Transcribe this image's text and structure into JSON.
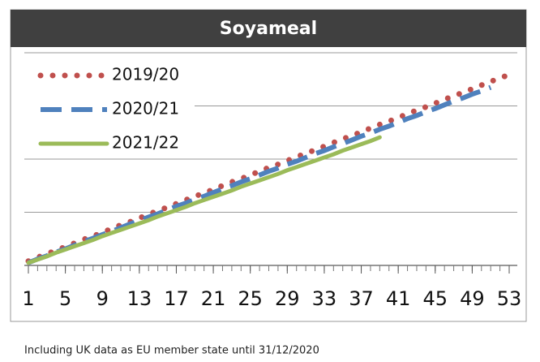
{
  "chart_data": {
    "type": "line",
    "title": "Soyameal",
    "note": "Including UK data as EU member state until 31/12/2020",
    "x": [
      1,
      2,
      3,
      4,
      5,
      6,
      7,
      8,
      9,
      10,
      11,
      12,
      13,
      14,
      15,
      16,
      17,
      18,
      19,
      20,
      21,
      22,
      23,
      24,
      25,
      26,
      27,
      28,
      29,
      30,
      31,
      32,
      33,
      34,
      35,
      36,
      37,
      38,
      39,
      40,
      41,
      42,
      43,
      44,
      45,
      46,
      47,
      48,
      49,
      50,
      51,
      52,
      53
    ],
    "xlim": [
      1,
      53
    ],
    "xticks": [
      1,
      5,
      9,
      13,
      17,
      21,
      25,
      29,
      33,
      37,
      41,
      45,
      49,
      53
    ],
    "ylim": [
      0,
      4
    ],
    "yticks": [
      0,
      1,
      2,
      3,
      4
    ],
    "grid": true,
    "legend": "upper-left",
    "series": [
      {
        "name": "2019/20",
        "color": "#c0504d",
        "style": "dotted",
        "values": [
          0.08,
          0.15,
          0.22,
          0.28,
          0.35,
          0.42,
          0.49,
          0.55,
          0.62,
          0.69,
          0.76,
          0.82,
          0.89,
          0.96,
          1.03,
          1.09,
          1.16,
          1.23,
          1.3,
          1.36,
          1.43,
          1.5,
          1.57,
          1.63,
          1.7,
          1.77,
          1.84,
          1.9,
          1.97,
          2.04,
          2.11,
          2.17,
          2.24,
          2.31,
          2.38,
          2.44,
          2.51,
          2.58,
          2.65,
          2.71,
          2.78,
          2.85,
          2.92,
          2.98,
          3.05,
          3.12,
          3.19,
          3.25,
          3.32,
          3.39,
          3.46,
          3.52,
          3.59
        ]
      },
      {
        "name": "2020/21",
        "color": "#4f81bd",
        "style": "dashed",
        "values": [
          0.05,
          0.12,
          0.18,
          0.25,
          0.31,
          0.38,
          0.45,
          0.51,
          0.58,
          0.64,
          0.71,
          0.78,
          0.84,
          0.91,
          0.97,
          1.04,
          1.11,
          1.17,
          1.24,
          1.3,
          1.37,
          1.44,
          1.5,
          1.57,
          1.63,
          1.7,
          1.77,
          1.83,
          1.9,
          1.96,
          2.03,
          2.1,
          2.16,
          2.23,
          2.29,
          2.36,
          2.43,
          2.49,
          2.56,
          2.62,
          2.69,
          2.76,
          2.82,
          2.89,
          2.95,
          3.02,
          3.09,
          3.15,
          3.22,
          3.28,
          3.35,
          null,
          null
        ]
      },
      {
        "name": "2021/22",
        "color": "#9bbb59",
        "style": "solid",
        "values": [
          0.05,
          0.11,
          0.17,
          0.24,
          0.3,
          0.36,
          0.42,
          0.48,
          0.55,
          0.61,
          0.67,
          0.73,
          0.79,
          0.85,
          0.92,
          0.98,
          1.04,
          1.1,
          1.17,
          1.23,
          1.29,
          1.35,
          1.41,
          1.48,
          1.54,
          1.6,
          1.66,
          1.72,
          1.79,
          1.85,
          1.91,
          1.97,
          2.03,
          2.09,
          2.16,
          2.22,
          2.28,
          2.34,
          2.41,
          null,
          null,
          null,
          null,
          null,
          null,
          null,
          null,
          null,
          null,
          null,
          null,
          null,
          null
        ]
      }
    ]
  }
}
